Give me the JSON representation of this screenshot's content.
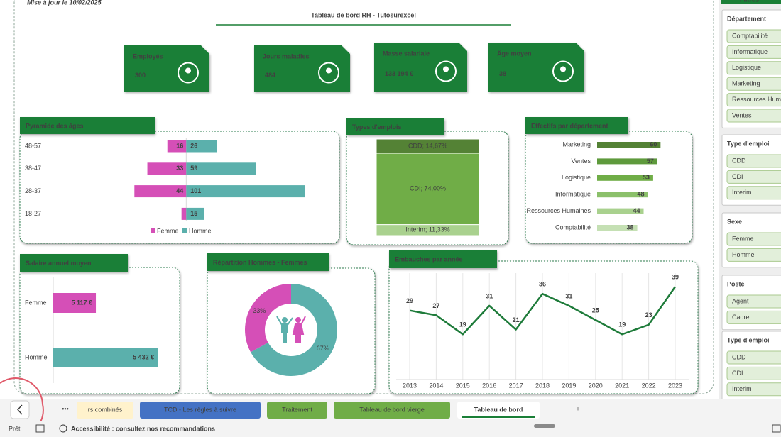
{
  "header": {
    "updated": "Mise à jour le 10/02/2025",
    "title": "Tableau de bord RH - Tutosurexcel"
  },
  "kpis": [
    {
      "label": "Employés",
      "value": 300
    },
    {
      "label": "Jours maladies",
      "value": 484
    },
    {
      "label": "Masse salariale",
      "value": 133194,
      "value_label": "133 194 €"
    },
    {
      "label": "Âge moyen",
      "value": 38
    }
  ],
  "chart_data": [
    {
      "type": "pyramid",
      "title": "Pyramide des âges",
      "categories": [
        "48-57",
        "38-47",
        "28-37",
        "18-27"
      ],
      "xlim": [
        -140,
        130
      ],
      "legend": "bottom",
      "series": [
        {
          "name": "Femme",
          "color": "#d54fb7",
          "values": [
            16,
            33,
            44,
            4
          ],
          "value_labels": [
            "16",
            "33",
            "44",
            null
          ]
        },
        {
          "name": "Homme",
          "color": "#5bb0ac",
          "values": [
            26,
            59,
            101,
            15
          ]
        }
      ]
    },
    {
      "type": "stacked_bar",
      "title": "Types d'emplois",
      "ylim": [
        0,
        100
      ],
      "series": [
        {
          "name": "Interim",
          "color": "#a9d18e",
          "values": [
            11.33
          ],
          "value_labels": [
            "Interim; 11,33%"
          ]
        },
        {
          "name": "CDI",
          "color": "#70ad47",
          "values": [
            74.0
          ],
          "value_labels": [
            "CDI; 74,00%"
          ]
        },
        {
          "name": "CDD",
          "color": "#548235",
          "values": [
            14.67
          ],
          "value_labels": [
            "CDD; 14,67%"
          ]
        }
      ]
    },
    {
      "type": "hbar",
      "title": "Effectifs par département",
      "categories": [
        "Marketing",
        "Ventes",
        "Logistique",
        "Informatique",
        "Ressources Humaines",
        "Comptabilité"
      ],
      "values": [
        60,
        57,
        53,
        48,
        44,
        38
      ],
      "xlim": [
        0,
        90
      ],
      "colors": [
        "#548235",
        "#5e9a3c",
        "#70ad47",
        "#8bc06a",
        "#a9d18e",
        "#c5e0b4"
      ]
    },
    {
      "type": "hbar",
      "title": "Salaire annuel moyen",
      "categories": [
        "Femme",
        "Homme"
      ],
      "values": [
        5117,
        5432
      ],
      "value_labels": [
        "5 117 €",
        "5 432 €"
      ],
      "xlim": [
        4900,
        5500
      ],
      "colors": [
        "#d54fb7",
        "#5bb0ac"
      ]
    },
    {
      "type": "donut",
      "title": "Répartition Hommes - Femmes",
      "categories": [
        "Homme",
        "Femme"
      ],
      "values": [
        67,
        33
      ],
      "value_labels": [
        "67%",
        "33%"
      ],
      "colors": [
        "#5bb0ac",
        "#d54fb7"
      ]
    },
    {
      "type": "line",
      "title": "Embauches par année",
      "categories": [
        "2013",
        "2014",
        "2015",
        "2016",
        "2017",
        "2018",
        "2019",
        "2020",
        "2021",
        "2022",
        "2023"
      ],
      "values": [
        29,
        27,
        19,
        31,
        21,
        36,
        31,
        25,
        19,
        23,
        39
      ],
      "ylim": [
        0,
        45
      ],
      "color": "#1e7b3a",
      "grid": true
    }
  ],
  "filters": {
    "title": "Filtres",
    "groups": [
      {
        "title": "Département",
        "items": [
          "Comptabilité",
          "Informatique",
          "Logistique",
          "Marketing",
          "Ressources Humaines",
          "Ventes"
        ]
      },
      {
        "title": "Type d'emploi",
        "items": [
          "CDD",
          "CDI",
          "Interim"
        ]
      },
      {
        "title": "Sexe",
        "items": [
          "Femme",
          "Homme"
        ]
      },
      {
        "title": "Poste",
        "items": [
          "Agent",
          "Cadre"
        ]
      },
      {
        "title": "Type d'emploi",
        "items": [
          "CDD",
          "CDI",
          "Interim"
        ]
      }
    ]
  },
  "tabs": {
    "more": "•••",
    "add": "+",
    "sheets": [
      {
        "name": "rs combinés",
        "color": "#fff2cc"
      },
      {
        "name": "TCD - Les règles à suivre",
        "color": "#4472c4"
      },
      {
        "name": "Traitement",
        "color": "#70ad47"
      },
      {
        "name": "Tableau de bord vierge",
        "color": "#70ad47"
      },
      {
        "name": "Tableau de bord",
        "color": "#ffffff",
        "active": true
      }
    ]
  },
  "status": {
    "ready": "Prêt",
    "accessibility": "Accessibilité : consultez nos recommandations"
  }
}
